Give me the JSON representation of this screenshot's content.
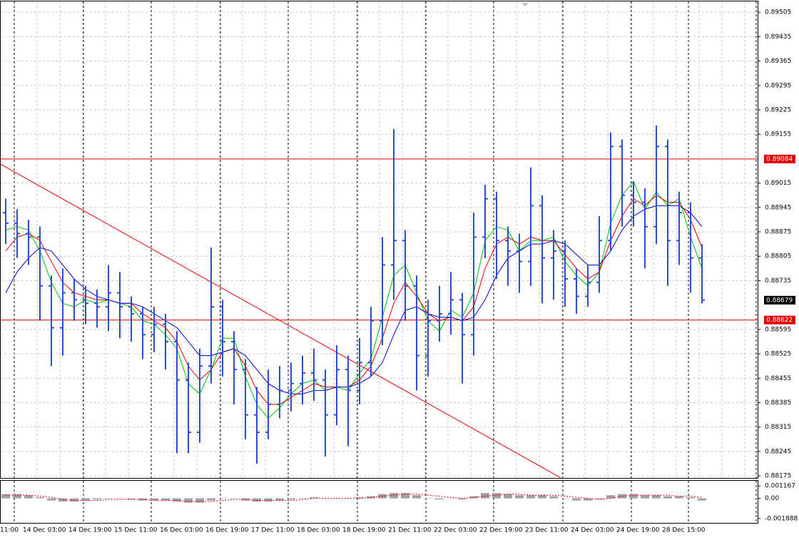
{
  "chart_data": {
    "type": "ohlc",
    "color": "#2a4fd6",
    "open": [
      0.8893,
      0.889,
      0.8887,
      0.8886,
      0.8872,
      0.886,
      0.887,
      0.8868,
      0.8867,
      0.8866,
      0.887,
      0.8866,
      0.8864,
      0.8858,
      0.8861,
      0.8856,
      0.8845,
      0.883,
      0.8849,
      0.8866,
      0.8856,
      0.8848,
      0.8835,
      0.883,
      0.8838,
      0.8842,
      0.8844,
      0.8847,
      0.8845,
      0.8835,
      0.8848,
      0.8842,
      0.885,
      0.8862,
      0.8878,
      0.8885,
      0.8872,
      0.8852,
      0.8862,
      0.8864,
      0.8868,
      0.8858,
      0.8886,
      0.8897,
      0.8885,
      0.8882,
      0.8879,
      0.8895,
      0.888,
      0.8882,
      0.8874,
      0.8869,
      0.8873,
      0.8885,
      0.8912,
      0.8898,
      0.8896,
      0.8889,
      0.8912,
      0.8885,
      0.8893,
      0.888
    ],
    "high": [
      0.8897,
      0.8894,
      0.8891,
      0.8889,
      0.8875,
      0.8877,
      0.8874,
      0.8872,
      0.8871,
      0.8878,
      0.8876,
      0.8869,
      0.8866,
      0.8866,
      0.8864,
      0.8859,
      0.885,
      0.8854,
      0.8883,
      0.8868,
      0.8859,
      0.8851,
      0.8843,
      0.8848,
      0.8849,
      0.885,
      0.8852,
      0.8854,
      0.8848,
      0.8855,
      0.8852,
      0.8857,
      0.8866,
      0.8886,
      0.8917,
      0.8888,
      0.8875,
      0.8868,
      0.8872,
      0.8876,
      0.887,
      0.8893,
      0.8901,
      0.8899,
      0.8889,
      0.8887,
      0.8906,
      0.8898,
      0.8888,
      0.8885,
      0.8877,
      0.8878,
      0.8892,
      0.8916,
      0.8914,
      0.8902,
      0.89,
      0.8918,
      0.8914,
      0.8899,
      0.8896,
      0.8884
    ],
    "low": [
      0.8884,
      0.888,
      0.8878,
      0.8862,
      0.8849,
      0.8852,
      0.8862,
      0.8861,
      0.886,
      0.8859,
      0.8857,
      0.8856,
      0.8851,
      0.8853,
      0.8848,
      0.8824,
      0.8824,
      0.8827,
      0.8844,
      0.8846,
      0.8838,
      0.8828,
      0.8821,
      0.8828,
      0.8834,
      0.8836,
      0.8838,
      0.8839,
      0.8823,
      0.8832,
      0.8826,
      0.8838,
      0.8846,
      0.8855,
      0.8868,
      0.8862,
      0.8842,
      0.8846,
      0.8856,
      0.8858,
      0.8844,
      0.8852,
      0.888,
      0.8874,
      0.8872,
      0.887,
      0.8872,
      0.8867,
      0.8868,
      0.8866,
      0.8864,
      0.8866,
      0.887,
      0.8882,
      0.8889,
      0.8889,
      0.8877,
      0.8884,
      0.8872,
      0.8878,
      0.887,
      0.8867
    ],
    "close": [
      0.889,
      0.8887,
      0.8886,
      0.8872,
      0.886,
      0.887,
      0.8868,
      0.8867,
      0.8866,
      0.887,
      0.8866,
      0.8864,
      0.8858,
      0.8861,
      0.8856,
      0.8845,
      0.883,
      0.8849,
      0.8866,
      0.8856,
      0.8848,
      0.8835,
      0.883,
      0.8838,
      0.8842,
      0.8844,
      0.8847,
      0.8845,
      0.8835,
      0.8848,
      0.8842,
      0.885,
      0.8862,
      0.8878,
      0.8885,
      0.8872,
      0.8852,
      0.8862,
      0.8864,
      0.8868,
      0.8858,
      0.8886,
      0.8897,
      0.8885,
      0.8882,
      0.8879,
      0.8895,
      0.888,
      0.8882,
      0.8874,
      0.8869,
      0.8873,
      0.8885,
      0.8912,
      0.8898,
      0.8896,
      0.8889,
      0.8912,
      0.8885,
      0.8893,
      0.888,
      0.88679
    ],
    "overlays": [
      {
        "color": "#00c000",
        "values": [
          0.8888,
          0.8889,
          0.8888,
          0.8882,
          0.8873,
          0.8867,
          0.8866,
          0.8868,
          0.8867,
          0.8868,
          0.8867,
          0.8866,
          0.8862,
          0.8861,
          0.8858,
          0.8854,
          0.8844,
          0.8841,
          0.8848,
          0.8857,
          0.8857,
          0.8846,
          0.8838,
          0.8834,
          0.8837,
          0.8841,
          0.8844,
          0.8845,
          0.8842,
          0.8843,
          0.8842,
          0.8847,
          0.8851,
          0.8863,
          0.8875,
          0.8878,
          0.887,
          0.8862,
          0.8859,
          0.8865,
          0.8863,
          0.887,
          0.8885,
          0.8889,
          0.8888,
          0.8882,
          0.8885,
          0.8885,
          0.8886,
          0.8879,
          0.8875,
          0.8872,
          0.8876,
          0.889,
          0.8898,
          0.8902,
          0.8894,
          0.8899,
          0.8895,
          0.8897,
          0.8886,
          0.8877
        ]
      },
      {
        "color": "#e00000",
        "values": [
          0.8882,
          0.8886,
          0.8887,
          0.8885,
          0.8879,
          0.8873,
          0.887,
          0.8869,
          0.8868,
          0.8868,
          0.8867,
          0.8867,
          0.8864,
          0.8862,
          0.886,
          0.8856,
          0.8849,
          0.8845,
          0.8848,
          0.8853,
          0.8854,
          0.8849,
          0.8842,
          0.8838,
          0.8838,
          0.884,
          0.8842,
          0.8844,
          0.8843,
          0.8843,
          0.8843,
          0.8845,
          0.8849,
          0.8857,
          0.8867,
          0.8873,
          0.8869,
          0.8864,
          0.8862,
          0.8863,
          0.8862,
          0.8866,
          0.8877,
          0.8884,
          0.8886,
          0.8884,
          0.8886,
          0.8885,
          0.8885,
          0.8881,
          0.8877,
          0.8874,
          0.8876,
          0.8885,
          0.8892,
          0.8897,
          0.8895,
          0.8898,
          0.8896,
          0.8896,
          0.8891,
          0.8883
        ]
      },
      {
        "color": "#0000d0",
        "values": [
          0.887,
          0.8876,
          0.888,
          0.8883,
          0.8882,
          0.8878,
          0.8874,
          0.8871,
          0.8869,
          0.8868,
          0.8867,
          0.8867,
          0.8866,
          0.8864,
          0.8862,
          0.886,
          0.8856,
          0.8852,
          0.8852,
          0.8853,
          0.8854,
          0.8852,
          0.8848,
          0.8844,
          0.8842,
          0.8841,
          0.8841,
          0.8842,
          0.8842,
          0.8843,
          0.8843,
          0.8844,
          0.8846,
          0.885,
          0.8858,
          0.8865,
          0.8866,
          0.8864,
          0.8863,
          0.8863,
          0.8862,
          0.8863,
          0.8868,
          0.8875,
          0.888,
          0.8882,
          0.8884,
          0.8884,
          0.8885,
          0.8884,
          0.8881,
          0.8878,
          0.8878,
          0.8882,
          0.8888,
          0.8892,
          0.8894,
          0.8895,
          0.8895,
          0.8895,
          0.8893,
          0.8889
        ]
      }
    ],
    "levels": [
      {
        "value": 0.89084,
        "color": "#e00000"
      },
      {
        "value": 0.88622,
        "color": "#e00000"
      }
    ],
    "current_price": 0.88679,
    "trendline": {
      "color": "#e00000",
      "x": [
        -0.5,
        48.6
      ],
      "y": [
        0.8907,
        0.8817
      ]
    },
    "ylim": [
      0.88167,
      0.89536
    ],
    "yticks": [
      0.89505,
      0.89435,
      0.89365,
      0.89295,
      0.89225,
      0.89155,
      0.89015,
      0.88945,
      0.88875,
      0.88805,
      0.88735,
      0.88595,
      0.88525,
      0.88455,
      0.88385,
      0.88315,
      0.88245,
      0.88175
    ],
    "grid": true,
    "time_labels": [
      "11:00",
      "14 Dec 03:00",
      "14 Dec 19:00",
      "15 Dec 11:00",
      "16 Dec 03:00",
      "16 Dec 19:00",
      "17 Dec 11:00",
      "18 Dec 03:00",
      "18 Dec 19:00",
      "21 Dec 11:00",
      "22 Dec 03:00",
      "22 Dec 19:00",
      "23 Dec 11:00",
      "24 Dec 03:00",
      "24 Dec 19:00",
      "28 Dec 15:00"
    ],
    "indicator": {
      "type": "histogram",
      "color": "#a0a0a0",
      "signal_color": "#e00000",
      "values": [
        0.0004,
        0.0004,
        0.0003,
        0.0001,
        -0.0002,
        -0.0003,
        -0.0003,
        -0.0002,
        -0.0001,
        0,
        0,
        -0.0001,
        -0.0002,
        -0.0002,
        -0.0002,
        -0.0003,
        -0.0004,
        -0.0004,
        -0.0002,
        0,
        0,
        -0.0002,
        -0.0003,
        -0.0003,
        -0.0002,
        -0.0001,
        0,
        0.0001,
        0,
        0,
        0,
        0.0001,
        0.0002,
        0.0004,
        0.0005,
        0.0005,
        0.0003,
        0,
        -0.0001,
        0,
        -0.0001,
        0.0002,
        0.0005,
        0.0005,
        0.0004,
        0.0003,
        0.0003,
        0.0003,
        0.0002,
        0,
        -0.0002,
        -0.0002,
        -0.0001,
        0.0003,
        0.0004,
        0.0004,
        0.0003,
        0.0003,
        0.0002,
        0.0002,
        0.0001,
        -0.0002
      ],
      "signal": [
        0.0003,
        0.0003,
        0.0003,
        0.0002,
        0.0001,
        -0.0001,
        -0.0002,
        -0.0002,
        -0.0002,
        -0.0001,
        -0.0001,
        -0.0001,
        -0.0001,
        -0.0002,
        -0.0002,
        -0.0002,
        -0.0003,
        -0.0003,
        -0.0003,
        -0.0002,
        -0.0001,
        -0.0001,
        -0.0002,
        -0.0002,
        -0.0002,
        -0.0002,
        -0.0001,
        0,
        0,
        0,
        0,
        0,
        0.0001,
        0.0002,
        0.0003,
        0.0004,
        0.0004,
        0.0003,
        0.0002,
        0.0001,
        0,
        0.0001,
        0.0002,
        0.0003,
        0.0004,
        0.0004,
        0.0003,
        0.0003,
        0.0003,
        0.0002,
        0.0001,
        0,
        -0.0001,
        0,
        0.0002,
        0.0003,
        0.0003,
        0.0003,
        0.0003,
        0.0002,
        0.0002,
        0.0001
      ],
      "ylim": [
        -0.0023,
        0.00165
      ],
      "yticks": [
        0.001167,
        {
          "value": 0,
          "label": "0.00"
        },
        -0.001888
      ]
    }
  }
}
